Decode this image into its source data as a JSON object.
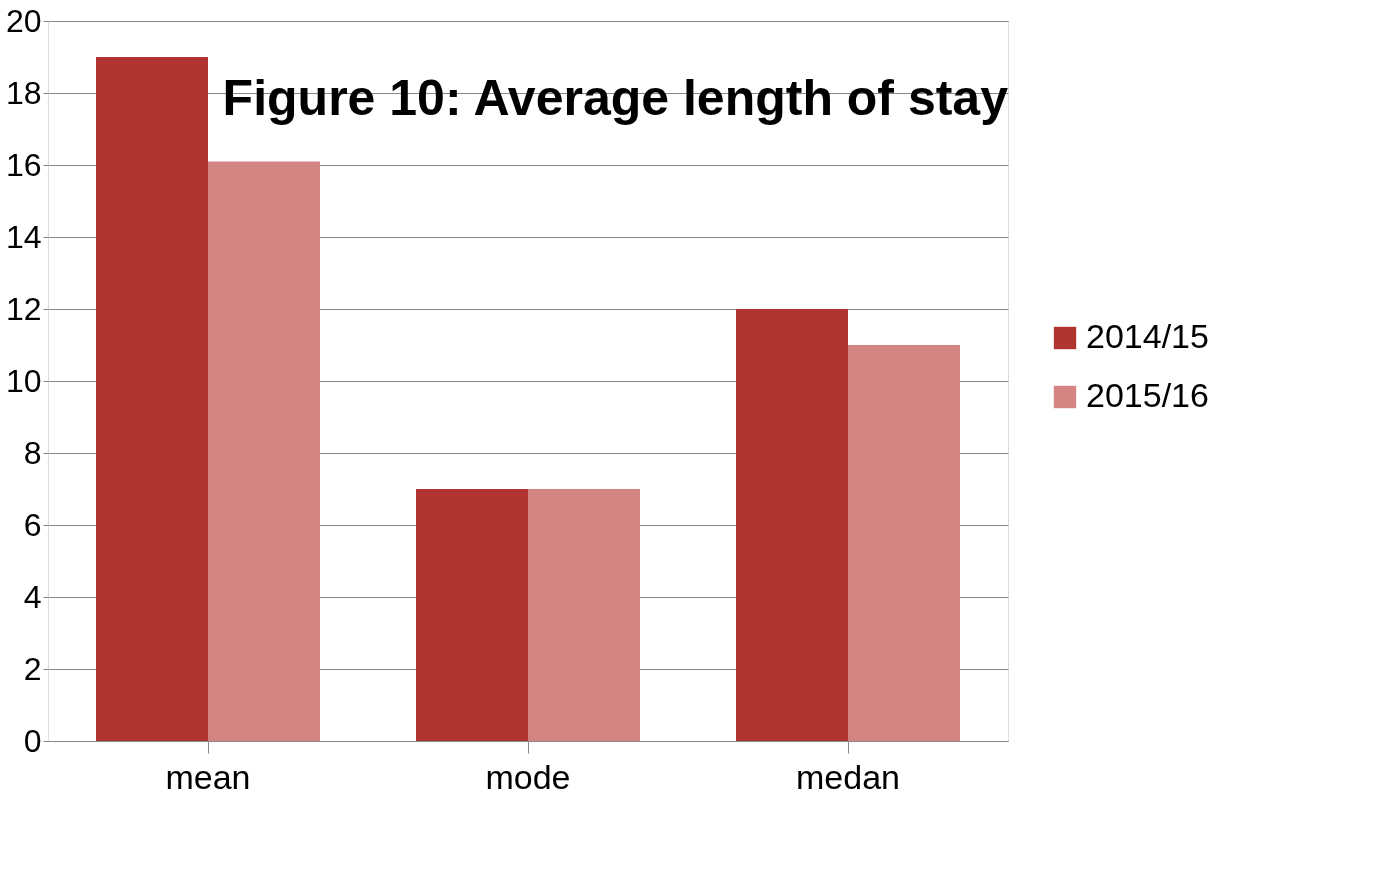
{
  "chart_data": {
    "type": "bar",
    "title": "Figure 10: Average length of stay",
    "categories": [
      "mean",
      "mode",
      "medan"
    ],
    "series": [
      {
        "name": "2014/15",
        "color": "#b03530",
        "values": [
          19,
          7,
          12
        ]
      },
      {
        "name": "2015/16",
        "color": "#d48482",
        "values": [
          16.1,
          7,
          11
        ]
      }
    ],
    "ylim": [
      0,
      20
    ],
    "yticks": [
      0,
      2,
      4,
      6,
      8,
      10,
      12,
      14,
      16,
      18,
      20
    ],
    "grid": "y",
    "legend": "right"
  }
}
